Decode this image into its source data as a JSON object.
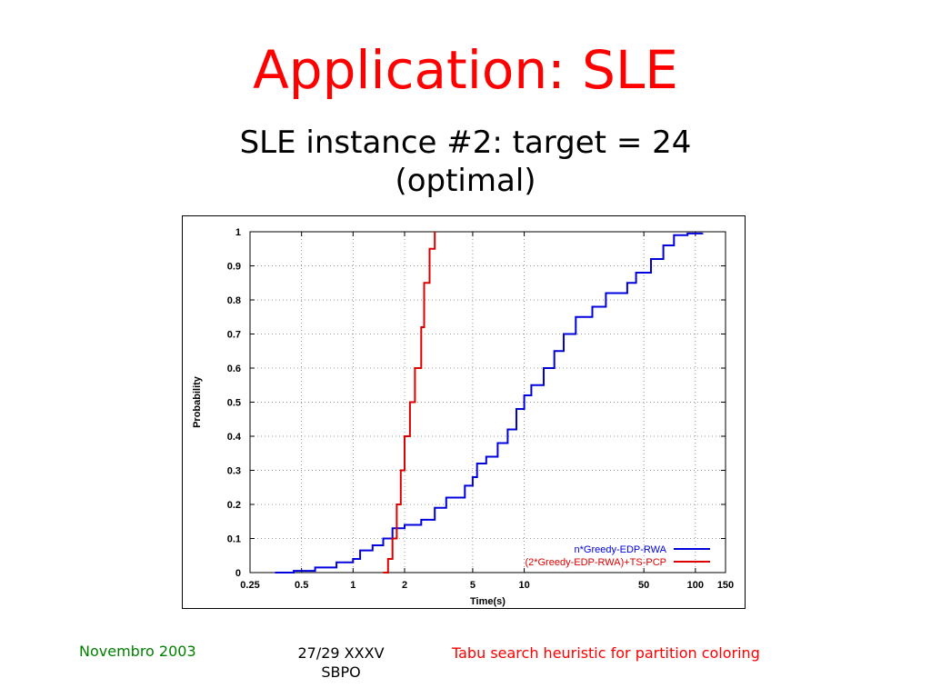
{
  "slide": {
    "title": "Application: SLE",
    "subtitle_line1": "SLE instance #2: target = 24",
    "subtitle_line2": "(optimal)"
  },
  "footer": {
    "left": "Novembro 2003",
    "center_line1": "27/29 XXXV",
    "center_line2": "SBPO",
    "right": "Tabu search heuristic for partition coloring"
  },
  "chart_data": {
    "type": "line",
    "xlabel": "Time(s)",
    "ylabel": "Probability",
    "x_scale": "log",
    "xlim": [
      0.25,
      150
    ],
    "ylim": [
      0,
      1
    ],
    "x_ticks": [
      0.25,
      0.5,
      1,
      2,
      5,
      10,
      50,
      100,
      150
    ],
    "x_tick_labels": [
      "0.25",
      "0.5",
      "1",
      "2",
      "5",
      "10",
      "50",
      "100",
      "150"
    ],
    "y_ticks": [
      0,
      0.1,
      0.2,
      0.3,
      0.4,
      0.5,
      0.6,
      0.7,
      0.8,
      0.9,
      1
    ],
    "y_tick_labels": [
      "0",
      "0.1",
      "0.2",
      "0.3",
      "0.4",
      "0.5",
      "0.6",
      "0.7",
      "0.8",
      "0.9",
      "1"
    ],
    "grid": true,
    "legend_position": "bottom-right",
    "series": [
      {
        "name": "n*Greedy-EDP-RWA",
        "color": "#0000dd",
        "points": [
          [
            0.35,
            0.0
          ],
          [
            0.45,
            0.005
          ],
          [
            0.6,
            0.015
          ],
          [
            0.8,
            0.03
          ],
          [
            1.0,
            0.04
          ],
          [
            1.1,
            0.065
          ],
          [
            1.3,
            0.08
          ],
          [
            1.5,
            0.1
          ],
          [
            1.7,
            0.13
          ],
          [
            2.0,
            0.14
          ],
          [
            2.5,
            0.155
          ],
          [
            3.0,
            0.19
          ],
          [
            3.5,
            0.22
          ],
          [
            4.5,
            0.255
          ],
          [
            5.0,
            0.28
          ],
          [
            5.3,
            0.32
          ],
          [
            6.0,
            0.34
          ],
          [
            7.0,
            0.38
          ],
          [
            8.0,
            0.42
          ],
          [
            9.0,
            0.48
          ],
          [
            10.0,
            0.52
          ],
          [
            11.0,
            0.55
          ],
          [
            13.0,
            0.6
          ],
          [
            15.0,
            0.65
          ],
          [
            17.0,
            0.7
          ],
          [
            20.0,
            0.75
          ],
          [
            25.0,
            0.78
          ],
          [
            30.0,
            0.82
          ],
          [
            40.0,
            0.85
          ],
          [
            45.0,
            0.88
          ],
          [
            55.0,
            0.92
          ],
          [
            65.0,
            0.96
          ],
          [
            75.0,
            0.99
          ],
          [
            90.0,
            0.995
          ],
          [
            110.0,
            0.996
          ]
        ]
      },
      {
        "name": "(2*Greedy-EDP-RWA)+TS-PCP",
        "color": "#dd0000",
        "points": [
          [
            1.5,
            0.0
          ],
          [
            1.6,
            0.04
          ],
          [
            1.7,
            0.1
          ],
          [
            1.8,
            0.2
          ],
          [
            1.9,
            0.3
          ],
          [
            2.0,
            0.4
          ],
          [
            2.15,
            0.5
          ],
          [
            2.3,
            0.6
          ],
          [
            2.5,
            0.72
          ],
          [
            2.6,
            0.85
          ],
          [
            2.8,
            0.95
          ],
          [
            3.0,
            1.0
          ]
        ]
      }
    ]
  }
}
